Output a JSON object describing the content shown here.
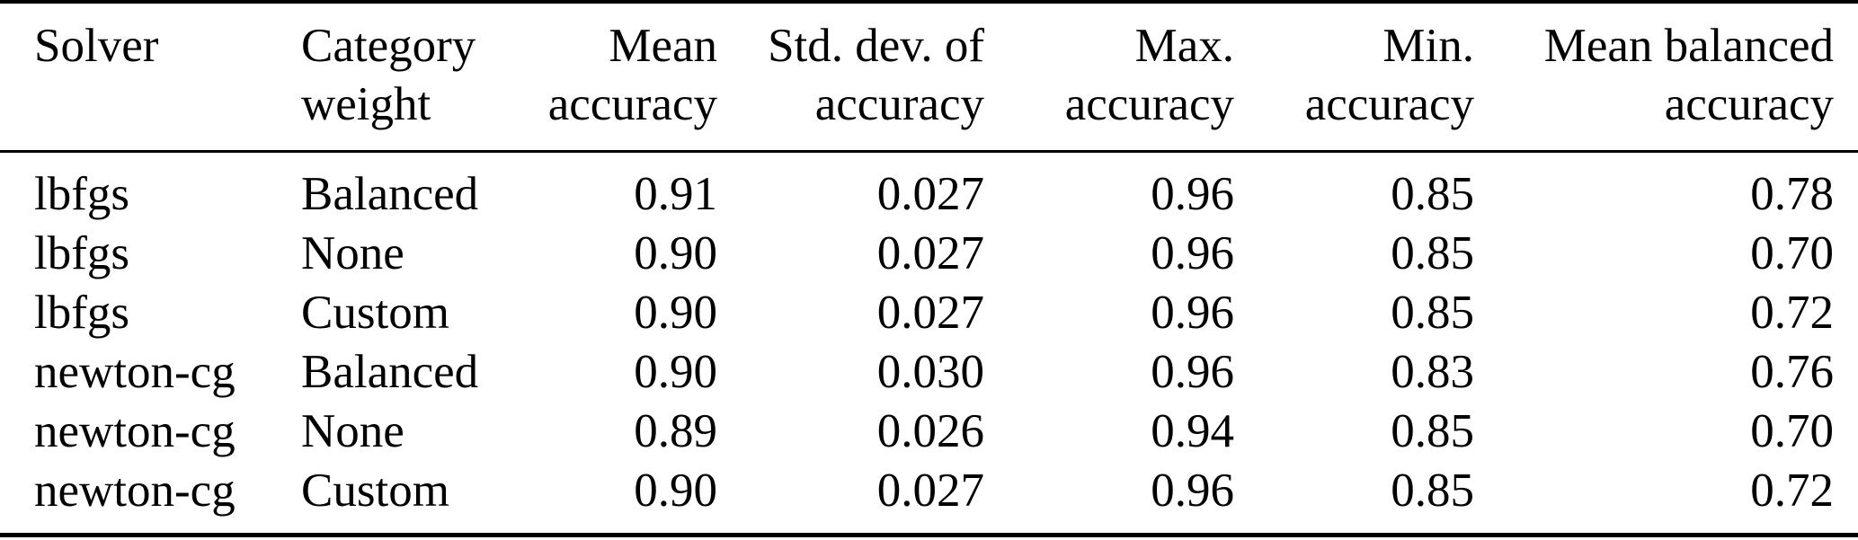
{
  "table": {
    "colors": {
      "text": "#000000",
      "background": "#ffffff",
      "rule": "#000000"
    },
    "columns": [
      {
        "id": "solver",
        "line1": "Solver",
        "line2": "",
        "align": "left"
      },
      {
        "id": "category-weight",
        "line1": "Category",
        "line2": "weight",
        "align": "left"
      },
      {
        "id": "mean-accuracy",
        "line1": "Mean",
        "line2": "accuracy",
        "align": "right"
      },
      {
        "id": "std-dev-of-accuracy",
        "line1": "Std. dev. of",
        "line2": "accuracy",
        "align": "right"
      },
      {
        "id": "max-accuracy",
        "line1": "Max.",
        "line2": "accuracy",
        "align": "right"
      },
      {
        "id": "min-accuracy",
        "line1": "Min.",
        "line2": "accuracy",
        "align": "right"
      },
      {
        "id": "mean-balanced-accuracy",
        "line1": "Mean balanced",
        "line2": "accuracy",
        "align": "right"
      }
    ],
    "rows": [
      [
        "lbfgs",
        "Balanced",
        "0.91",
        "0.027",
        "0.96",
        "0.85",
        "0.78"
      ],
      [
        "lbfgs",
        "None",
        "0.90",
        "0.027",
        "0.96",
        "0.85",
        "0.70"
      ],
      [
        "lbfgs",
        "Custom",
        "0.90",
        "0.027",
        "0.96",
        "0.85",
        "0.72"
      ],
      [
        "newton-cg",
        "Balanced",
        "0.90",
        "0.030",
        "0.96",
        "0.83",
        "0.76"
      ],
      [
        "newton-cg",
        "None",
        "0.89",
        "0.026",
        "0.94",
        "0.85",
        "0.70"
      ],
      [
        "newton-cg",
        "Custom",
        "0.90",
        "0.027",
        "0.96",
        "0.85",
        "0.72"
      ]
    ]
  }
}
